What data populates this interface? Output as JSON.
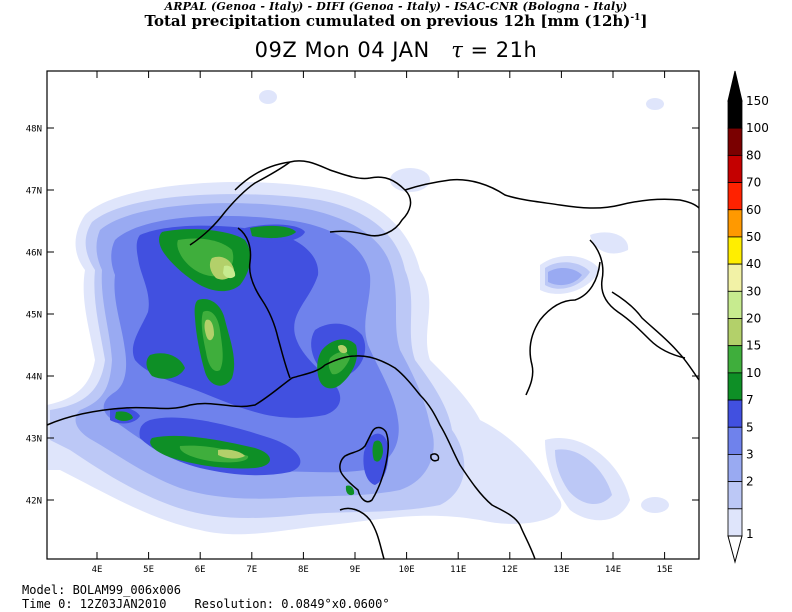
{
  "header": {
    "credits": "ARPAL (Genoa - Italy)  -  DIFI (Genoa - Italy)  -  ISAC-CNR (Bologna - Italy)",
    "title_main": "Total precipitation cumulated on previous 12h [mm (12h)",
    "title_sup": "-1",
    "title_close": "]",
    "subtitle_time": "09Z Mon 04 JAN",
    "subtitle_tau_symbol": "τ",
    "subtitle_tau_value": "= 21h"
  },
  "map": {
    "lat_labels": [
      "48N",
      "47N",
      "46N",
      "45N",
      "44N",
      "43N",
      "42N"
    ],
    "lon_labels": [
      "4E",
      "5E",
      "6E",
      "7E",
      "8E",
      "9E",
      "10E",
      "11E",
      "12E",
      "13E",
      "14E",
      "15E"
    ]
  },
  "legend": {
    "levels": [
      {
        "label": "150",
        "color": "#000000"
      },
      {
        "label": "100",
        "color": "#7a0000"
      },
      {
        "label": "80",
        "color": "#c40000"
      },
      {
        "label": "70",
        "color": "#ff2200"
      },
      {
        "label": "60",
        "color": "#ff9900"
      },
      {
        "label": "50",
        "color": "#ffee00"
      },
      {
        "label": "40",
        "color": "#f2f2a6"
      },
      {
        "label": "30",
        "color": "#c7eb8f"
      },
      {
        "label": "20",
        "color": "#b3d06a"
      },
      {
        "label": "15",
        "color": "#3fae3c"
      },
      {
        "label": "10",
        "color": "#0e8f26"
      },
      {
        "label": "7",
        "color": "#4150e0"
      },
      {
        "label": "5",
        "color": "#6f82ec"
      },
      {
        "label": "3",
        "color": "#99aaf2"
      },
      {
        "label": "2",
        "color": "#bcc8f6"
      },
      {
        "label": "1",
        "color": "#dfe5fb"
      }
    ]
  },
  "footer": {
    "model": "Model: BOLAM99_006x006",
    "time0": "Time 0: 12Z03JAN2010",
    "resolution": "Resolution: 0.0849°x0.0600°"
  }
}
